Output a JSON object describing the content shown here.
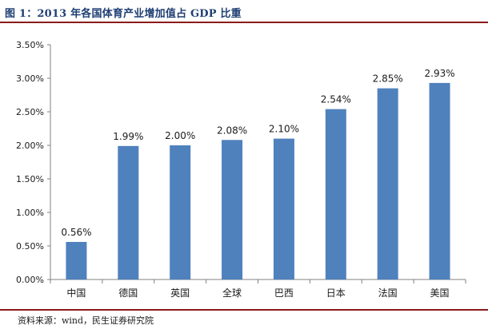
{
  "figure": {
    "title": "图 1：2013 年各国体育产业增加值占 GDP 比重",
    "source": "资料来源：wind，民生证券研究院"
  },
  "colors": {
    "bar": "#4f81bd",
    "title": "#1f3f73",
    "rule": "#8b1a1a",
    "axis": "#808080"
  },
  "chart_data": {
    "type": "bar",
    "title": "",
    "xlabel": "",
    "ylabel": "",
    "categories": [
      "中国",
      "德国",
      "英国",
      "全球",
      "巴西",
      "日本",
      "法国",
      "美国"
    ],
    "values": [
      0.56,
      1.99,
      2.0,
      2.08,
      2.1,
      2.54,
      2.85,
      2.93
    ],
    "data_labels": [
      "0.56%",
      "1.99%",
      "2.00%",
      "2.08%",
      "2.10%",
      "2.54%",
      "2.85%",
      "2.93%"
    ],
    "yticks": [
      0,
      0.5,
      1.0,
      1.5,
      2.0,
      2.5,
      3.0,
      3.5
    ],
    "ytick_labels": [
      "0.00%",
      "0.50%",
      "1.00%",
      "1.50%",
      "2.00%",
      "2.50%",
      "3.00%",
      "3.50%"
    ],
    "ylim": [
      0,
      3.5
    ],
    "unit": "%",
    "grid": false,
    "legend": "none"
  }
}
